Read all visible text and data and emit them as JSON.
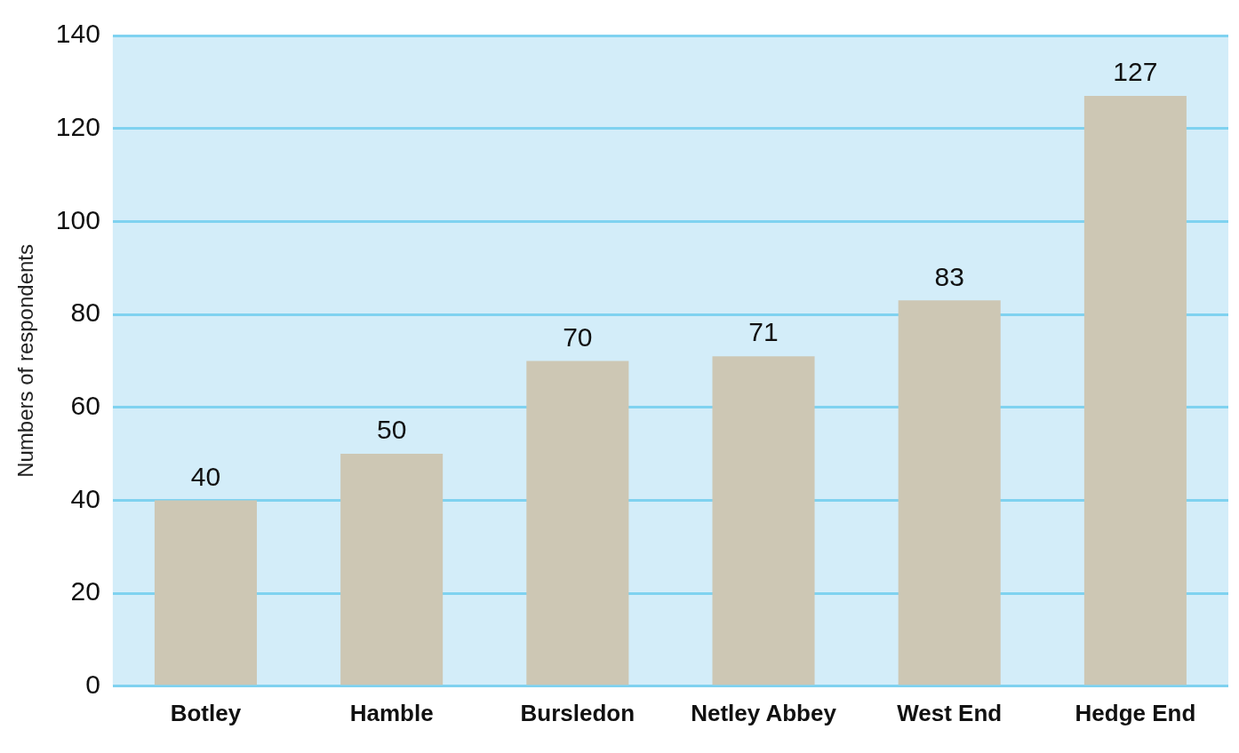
{
  "chart_data": {
    "type": "bar",
    "ylabel": "Numbers of respondents",
    "categories": [
      "Botley",
      "Hamble",
      "Bursledon",
      "Netley Abbey",
      "West End",
      "Hedge End"
    ],
    "values": [
      40,
      50,
      70,
      71,
      83,
      127
    ],
    "color": "#cdc7b4",
    "ylim": [
      0,
      140
    ],
    "yticks": [
      0,
      20,
      40,
      60,
      80,
      100,
      120,
      140
    ],
    "grid": "y",
    "data_labels": true,
    "legend": false
  }
}
